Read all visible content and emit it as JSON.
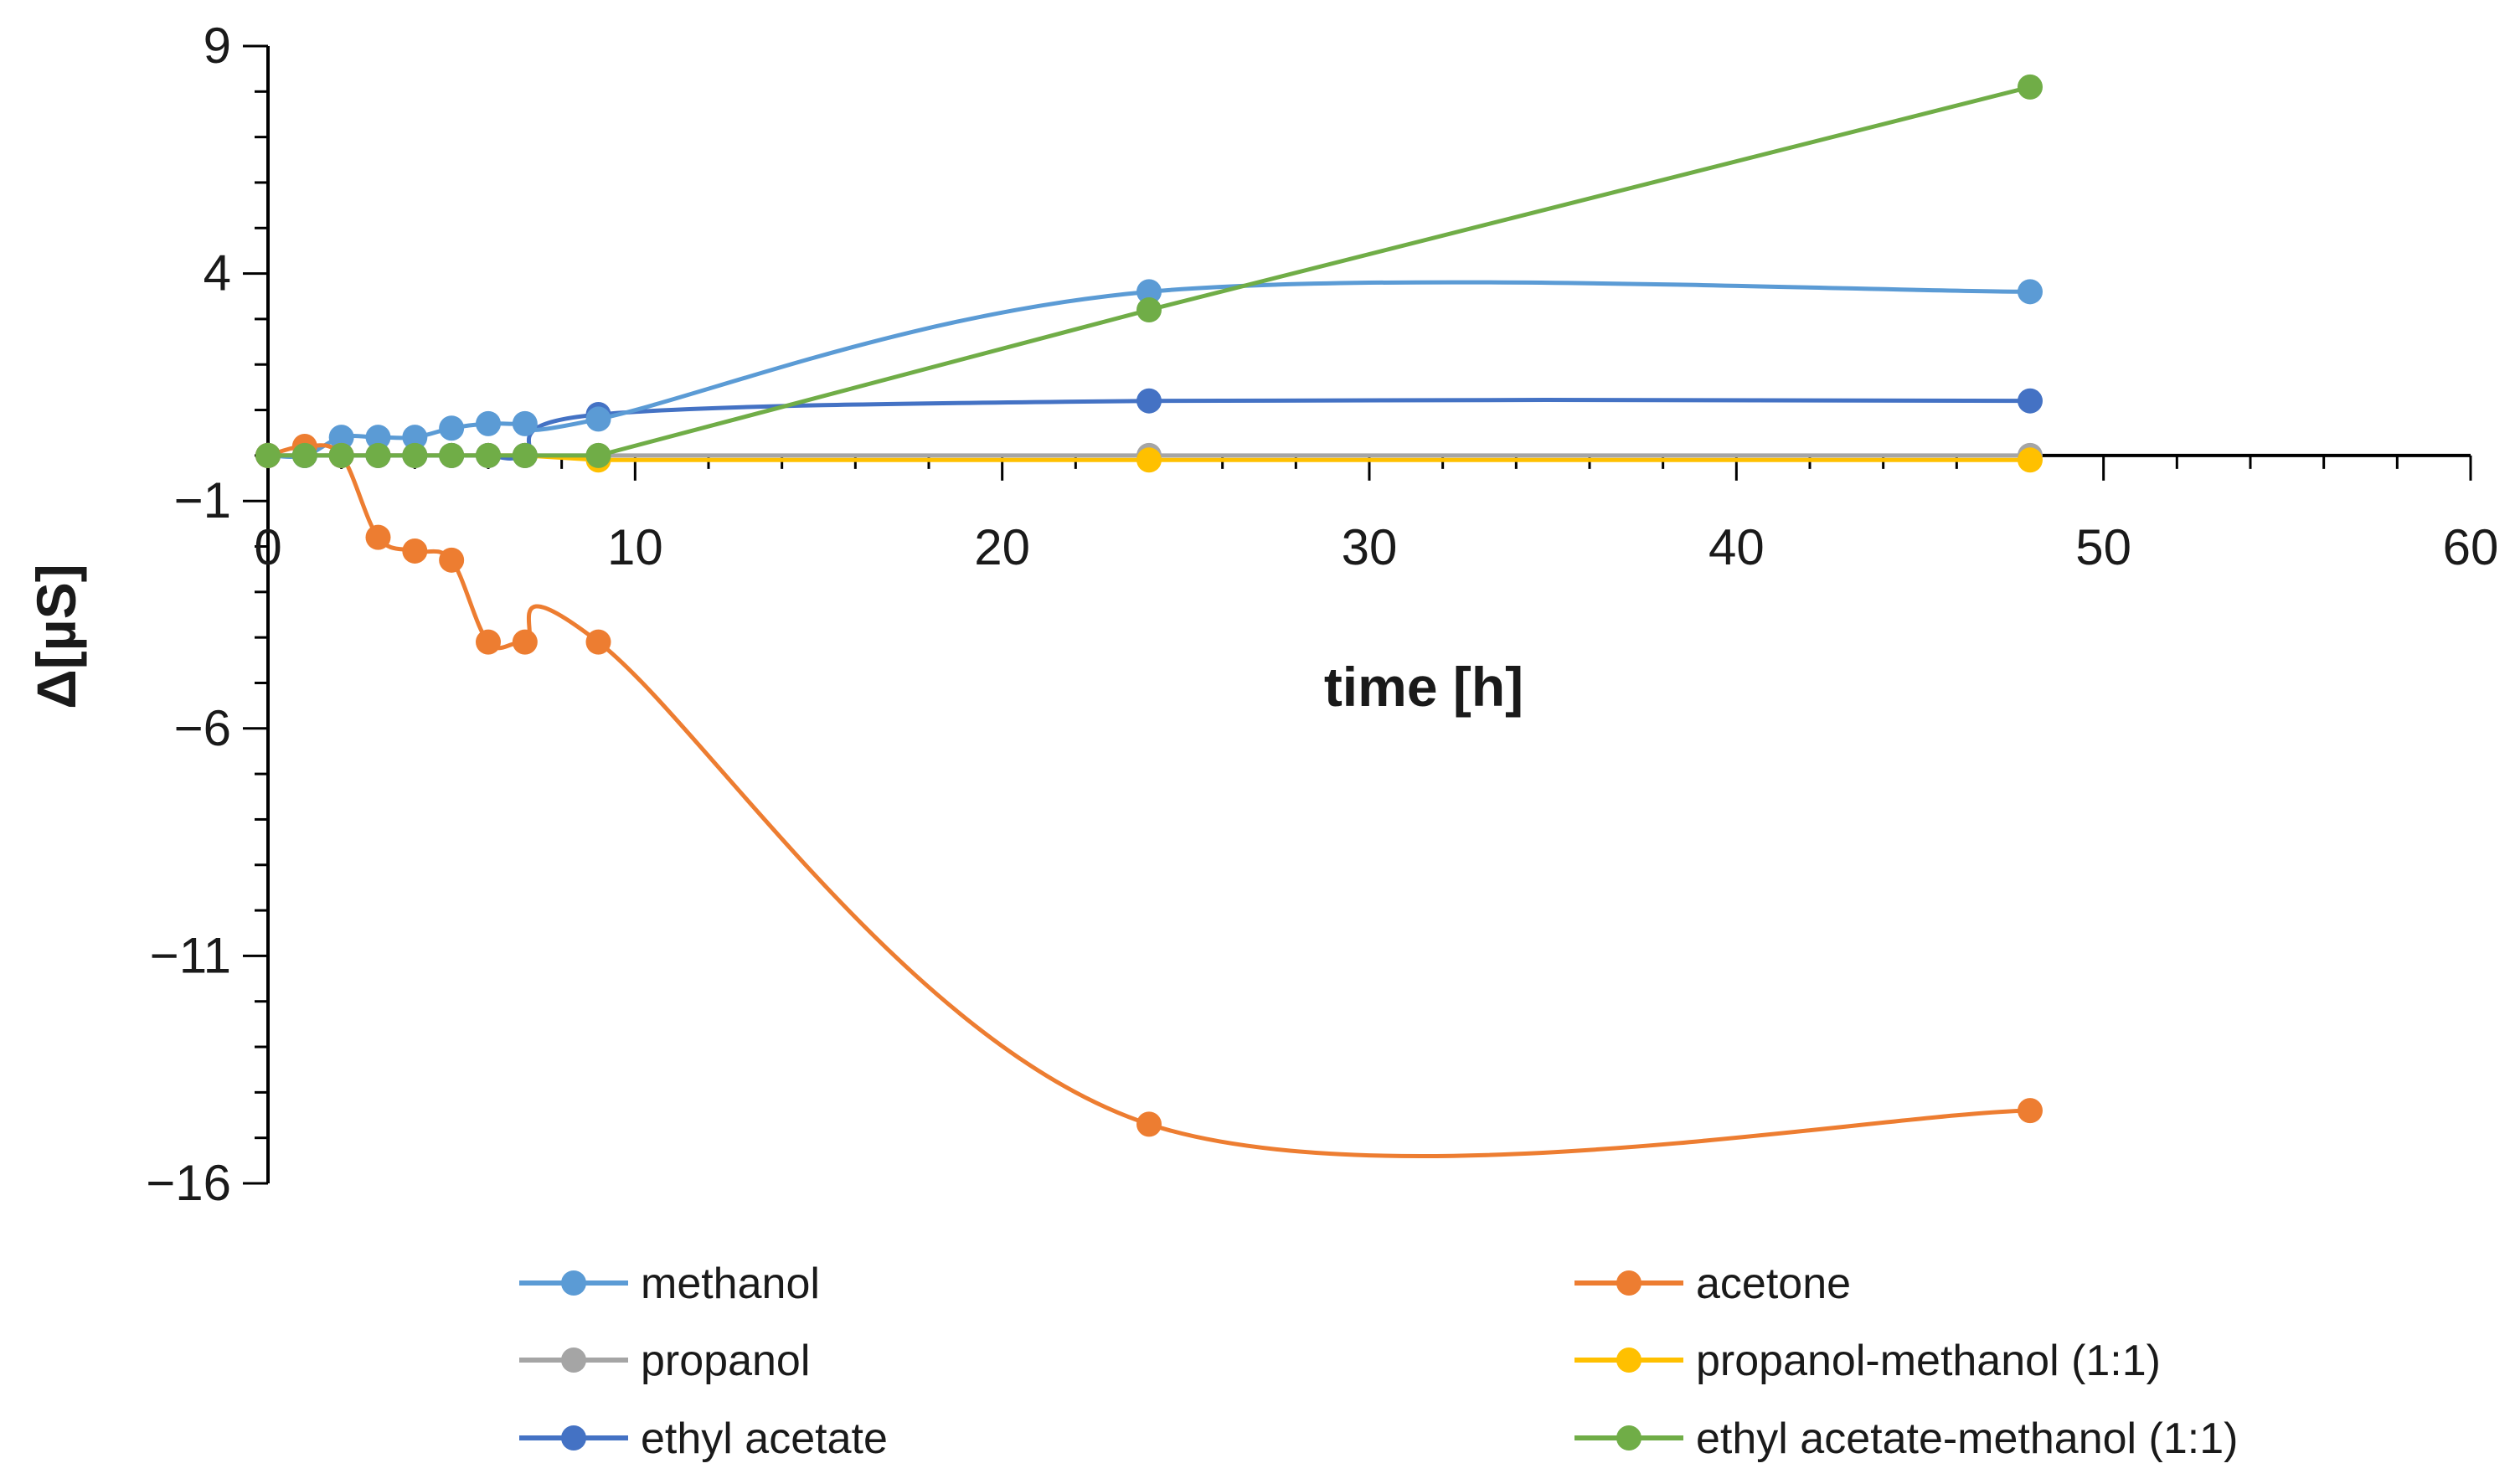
{
  "chart_data": {
    "type": "line",
    "title": "",
    "xlabel": "time [h]",
    "ylabel": "Δ[µS]",
    "xlim": [
      0,
      60
    ],
    "ylim": [
      -16,
      9
    ],
    "x_ticks": [
      0,
      10,
      20,
      30,
      40,
      50,
      60
    ],
    "y_ticks": [
      9,
      4,
      -1,
      -6,
      -11,
      -16
    ],
    "x_tick_labels": [
      "0",
      "10",
      "20",
      "30",
      "40",
      "50",
      "60"
    ],
    "y_tick_labels": [
      "9",
      "4",
      "−1",
      "−6",
      "−11",
      "−16"
    ],
    "legend_position": "bottom",
    "series": [
      {
        "name": "methanol",
        "color": "#5B9BD5",
        "smooth": true,
        "x": [
          0,
          1,
          2,
          3,
          4,
          5,
          6,
          7,
          9,
          24,
          48
        ],
        "y": [
          0,
          0,
          0.4,
          0.4,
          0.4,
          0.6,
          0.7,
          0.7,
          0.8,
          3.6,
          3.6
        ]
      },
      {
        "name": "acetone",
        "color": "#ED7D31",
        "smooth": true,
        "x": [
          0,
          1,
          2,
          3,
          4,
          5,
          6,
          7,
          9,
          24,
          48
        ],
        "y": [
          0,
          0.2,
          0,
          -1.8,
          -2.1,
          -2.3,
          -4.1,
          -4.1,
          -4.1,
          -14.7,
          -14.4
        ]
      },
      {
        "name": "propanol",
        "color": "#A5A5A5",
        "smooth": false,
        "x": [
          0,
          1,
          2,
          3,
          4,
          5,
          6,
          7,
          9,
          24,
          48
        ],
        "y": [
          0,
          0,
          0,
          0,
          0,
          0,
          0,
          0,
          0,
          0,
          0
        ]
      },
      {
        "name": "propanol-methanol (1:1)",
        "color": "#FFC000",
        "smooth": false,
        "x": [
          0,
          1,
          2,
          3,
          4,
          5,
          6,
          7,
          9,
          24,
          48
        ],
        "y": [
          0,
          0,
          0,
          0,
          0,
          0,
          0,
          0,
          -0.1,
          -0.1,
          -0.1
        ]
      },
      {
        "name": "ethyl acetate",
        "color": "#4472C4",
        "smooth": true,
        "x": [
          0,
          1,
          2,
          3,
          4,
          5,
          6,
          7,
          9,
          24,
          48
        ],
        "y": [
          0,
          0,
          0,
          0,
          0,
          0,
          0,
          0,
          0.9,
          1.2,
          1.2
        ]
      },
      {
        "name": "ethyl acetate-methanol (1:1)",
        "color": "#70AD47",
        "smooth": false,
        "x": [
          0,
          1,
          2,
          3,
          4,
          5,
          6,
          7,
          9,
          24,
          48
        ],
        "y": [
          0,
          0,
          0,
          0,
          0,
          0,
          0,
          0,
          0,
          3.2,
          8.1
        ]
      }
    ]
  }
}
